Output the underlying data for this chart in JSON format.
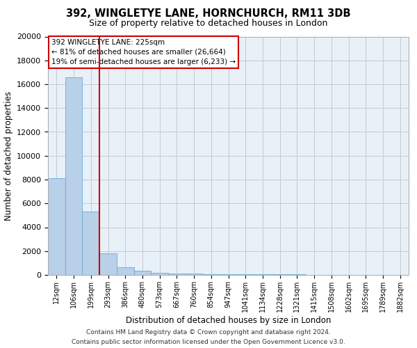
{
  "title1": "392, WINGLETYE LANE, HORNCHURCH, RM11 3DB",
  "title2": "Size of property relative to detached houses in London",
  "xlabel": "Distribution of detached houses by size in London",
  "ylabel": "Number of detached properties",
  "bar_labels": [
    "12sqm",
    "106sqm",
    "199sqm",
    "293sqm",
    "386sqm",
    "480sqm",
    "573sqm",
    "667sqm",
    "760sqm",
    "854sqm",
    "947sqm",
    "1041sqm",
    "1134sqm",
    "1228sqm",
    "1321sqm",
    "1415sqm",
    "1508sqm",
    "1602sqm",
    "1695sqm",
    "1789sqm",
    "1882sqm"
  ],
  "bar_values": [
    8100,
    16600,
    5300,
    1800,
    650,
    350,
    200,
    130,
    95,
    75,
    60,
    50,
    42,
    35,
    30,
    25,
    22,
    18,
    15,
    13,
    10
  ],
  "bar_color": "#b8d0e8",
  "bar_edge_color": "#6aaad4",
  "annotation_text_line1": "392 WINGLETYE LANE: 225sqm",
  "annotation_text_line2": "← 81% of detached houses are smaller (26,664)",
  "annotation_text_line3": "19% of semi-detached houses are larger (6,233) →",
  "annotation_box_color": "white",
  "annotation_border_color": "#cc0000",
  "vline_color": "#cc0000",
  "vline_x": 2.5,
  "ylim": [
    0,
    20000
  ],
  "yticks": [
    0,
    2000,
    4000,
    6000,
    8000,
    10000,
    12000,
    14000,
    16000,
    18000,
    20000
  ],
  "footer_line1": "Contains HM Land Registry data © Crown copyright and database right 2024.",
  "footer_line2": "Contains public sector information licensed under the Open Government Licence v3.0.",
  "bg_color": "#ffffff",
  "plot_bg_color": "#e8f0f8",
  "grid_color": "#c8c8d0"
}
